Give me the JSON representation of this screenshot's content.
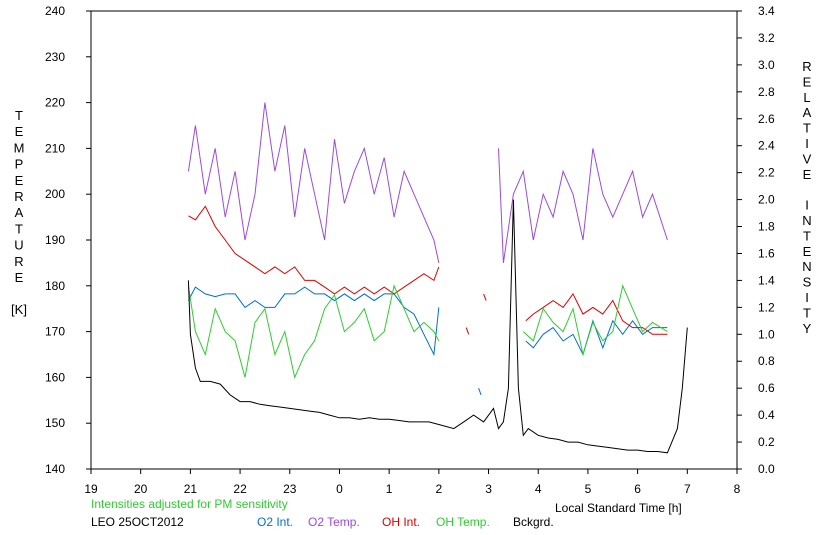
{
  "chart_data": {
    "type": "line",
    "xlabel": "Local Standard Time [h]",
    "ylabel_left": [
      "T",
      "E",
      "M",
      "P",
      "E",
      "R",
      "A",
      "T",
      "U",
      "R",
      "E"
    ],
    "ylabel_left_unit": "[K]",
    "ylabel_right": [
      "R",
      "E",
      "L",
      "A",
      "T",
      "I",
      "V",
      "E",
      " ",
      "I",
      "N",
      "T",
      "E",
      "N",
      "S",
      "I",
      "T",
      "Y"
    ],
    "xlim": [
      19,
      32
    ],
    "xticks": [
      19,
      20,
      21,
      22,
      23,
      24,
      25,
      26,
      27,
      28,
      29,
      30,
      31,
      32
    ],
    "xtick_labels": [
      "19",
      "20",
      "21",
      "22",
      "23",
      "0",
      "1",
      "2",
      "3",
      "4",
      "5",
      "6",
      "7",
      "8"
    ],
    "ylim_left": [
      140,
      240
    ],
    "yticks_left": [
      "140",
      "150",
      "160",
      "170",
      "180",
      "190",
      "200",
      "210",
      "220",
      "230",
      "240"
    ],
    "ylim_right": [
      0.0,
      3.4
    ],
    "yticks_right": [
      "0.0",
      "0.2",
      "0.4",
      "0.6",
      "0.8",
      "1.0",
      "1.2",
      "1.4",
      "1.6",
      "1.8",
      "2.0",
      "2.2",
      "2.4",
      "2.6",
      "2.8",
      "3.0",
      "3.2",
      "3.4"
    ],
    "note": "Intensities adjusted for PM sensitivity",
    "station": "LEO 25OCT2012",
    "series": [
      {
        "name": "O2 Int.",
        "color": "#0070d0",
        "axis": "right",
        "x": [
          20.96,
          21.1,
          21.3,
          21.5,
          21.7,
          21.9,
          22.1,
          22.3,
          22.5,
          22.7,
          22.9,
          23.1,
          23.3,
          23.5,
          23.7,
          23.9,
          24.1,
          24.3,
          24.5,
          24.7,
          24.9,
          25.1,
          25.3,
          25.5,
          25.7,
          25.9,
          26.0,
          null,
          26.8,
          26.85,
          null,
          27.75,
          27.9,
          28.1,
          28.3,
          28.5,
          28.7,
          28.9,
          29.1,
          29.3,
          29.5,
          29.7,
          29.9,
          30.1,
          30.3,
          30.6
        ],
        "y": [
          1.25,
          1.35,
          1.3,
          1.28,
          1.3,
          1.3,
          1.2,
          1.25,
          1.2,
          1.2,
          1.3,
          1.3,
          1.35,
          1.3,
          1.3,
          1.25,
          1.3,
          1.25,
          1.3,
          1.25,
          1.3,
          1.3,
          1.2,
          1.15,
          1.0,
          0.85,
          1.2,
          null,
          0.6,
          0.55,
          null,
          0.95,
          0.9,
          1.0,
          1.05,
          0.95,
          1.0,
          0.85,
          1.1,
          0.9,
          1.1,
          1.0,
          1.1,
          1.0,
          1.05,
          1.05
        ]
      },
      {
        "name": "O2 Temp.",
        "color": "#9c4bd8",
        "axis": "left",
        "x": [
          20.96,
          21.1,
          21.3,
          21.5,
          21.7,
          21.9,
          22.1,
          22.3,
          22.5,
          22.7,
          22.9,
          23.1,
          23.3,
          23.5,
          23.7,
          23.9,
          24.1,
          24.3,
          24.5,
          24.7,
          24.9,
          25.1,
          25.3,
          25.5,
          25.7,
          25.9,
          26.0,
          null,
          27.2,
          27.3,
          27.5,
          27.7,
          27.9,
          28.1,
          28.3,
          28.5,
          28.7,
          28.9,
          29.1,
          29.3,
          29.5,
          29.7,
          29.9,
          30.1,
          30.3,
          30.6
        ],
        "y": [
          205,
          215,
          200,
          210,
          195,
          205,
          190,
          200,
          220,
          205,
          215,
          195,
          210,
          200,
          190,
          212,
          198,
          205,
          210,
          200,
          208,
          195,
          205,
          200,
          195,
          190,
          185,
          null,
          210,
          185,
          200,
          205,
          190,
          200,
          195,
          205,
          200,
          190,
          210,
          200,
          195,
          200,
          205,
          195,
          200,
          190
        ]
      },
      {
        "name": "OH Int.",
        "color": "#e00000",
        "axis": "right",
        "x": [
          20.96,
          21.1,
          21.3,
          21.5,
          21.7,
          21.9,
          22.1,
          22.3,
          22.5,
          22.7,
          22.9,
          23.1,
          23.3,
          23.5,
          23.7,
          23.9,
          24.1,
          24.3,
          24.5,
          24.7,
          24.9,
          25.1,
          25.3,
          25.5,
          25.7,
          25.9,
          26.0,
          null,
          26.55,
          26.6,
          null,
          26.9,
          26.95,
          null,
          27.75,
          27.9,
          28.1,
          28.3,
          28.5,
          28.7,
          28.9,
          29.1,
          29.3,
          29.5,
          29.7,
          29.9,
          30.1,
          30.3,
          30.6
        ],
        "y": [
          1.88,
          1.85,
          1.95,
          1.8,
          1.7,
          1.6,
          1.55,
          1.5,
          1.45,
          1.5,
          1.45,
          1.5,
          1.4,
          1.4,
          1.35,
          1.3,
          1.35,
          1.3,
          1.35,
          1.3,
          1.35,
          1.3,
          1.35,
          1.4,
          1.45,
          1.4,
          1.5,
          null,
          1.05,
          1.0,
          null,
          1.3,
          1.25,
          null,
          1.1,
          1.15,
          1.2,
          1.25,
          1.2,
          1.3,
          1.15,
          1.2,
          1.15,
          1.25,
          1.1,
          1.05,
          1.05,
          1.0,
          1.0
        ]
      },
      {
        "name": "OH Temp.",
        "color": "#2fcc2f",
        "axis": "left",
        "x": [
          20.96,
          21.1,
          21.3,
          21.5,
          21.7,
          21.9,
          22.1,
          22.3,
          22.5,
          22.7,
          22.9,
          23.1,
          23.3,
          23.5,
          23.7,
          23.9,
          24.1,
          24.3,
          24.5,
          24.7,
          24.9,
          25.1,
          25.3,
          25.5,
          25.7,
          25.9,
          26.0,
          null,
          27.7,
          27.9,
          28.1,
          28.3,
          28.5,
          28.7,
          28.9,
          29.1,
          29.3,
          29.5,
          29.7,
          29.9,
          30.1,
          30.3,
          30.6
        ],
        "y": [
          180,
          170,
          165,
          175,
          170,
          168,
          160,
          172,
          175,
          165,
          170,
          160,
          165,
          168,
          175,
          178,
          170,
          172,
          175,
          168,
          170,
          180,
          175,
          170,
          172,
          170,
          168,
          null,
          170,
          168,
          175,
          172,
          170,
          175,
          165,
          172,
          168,
          170,
          180,
          175,
          170,
          172,
          170
        ]
      },
      {
        "name": "Bckgrd.",
        "color": "#000000",
        "axis": "right",
        "x": [
          20.96,
          21.0,
          21.1,
          21.2,
          21.4,
          21.6,
          21.8,
          22.0,
          22.2,
          22.4,
          22.6,
          22.8,
          23.0,
          23.2,
          23.4,
          23.6,
          23.8,
          24.0,
          24.2,
          24.4,
          24.6,
          24.8,
          25.0,
          25.2,
          25.4,
          25.6,
          25.8,
          26.0,
          26.3,
          26.5,
          26.7,
          26.9,
          27.1,
          27.2,
          27.3,
          27.4,
          27.5,
          27.6,
          27.7,
          27.8,
          28.0,
          28.2,
          28.4,
          28.6,
          28.8,
          29.0,
          29.2,
          29.4,
          29.6,
          29.8,
          30.0,
          30.2,
          30.4,
          30.6,
          30.8,
          30.9,
          31.0
        ],
        "y": [
          1.4,
          1.0,
          0.75,
          0.65,
          0.65,
          0.63,
          0.55,
          0.5,
          0.5,
          0.48,
          0.47,
          0.46,
          0.45,
          0.44,
          0.43,
          0.42,
          0.4,
          0.38,
          0.38,
          0.37,
          0.38,
          0.37,
          0.37,
          0.36,
          0.35,
          0.35,
          0.35,
          0.33,
          0.3,
          0.35,
          0.4,
          0.35,
          0.45,
          0.3,
          0.35,
          0.6,
          2.0,
          0.6,
          0.25,
          0.3,
          0.25,
          0.23,
          0.22,
          0.2,
          0.2,
          0.18,
          0.17,
          0.16,
          0.15,
          0.14,
          0.14,
          0.13,
          0.13,
          0.12,
          0.3,
          0.6,
          1.05
        ]
      }
    ]
  }
}
